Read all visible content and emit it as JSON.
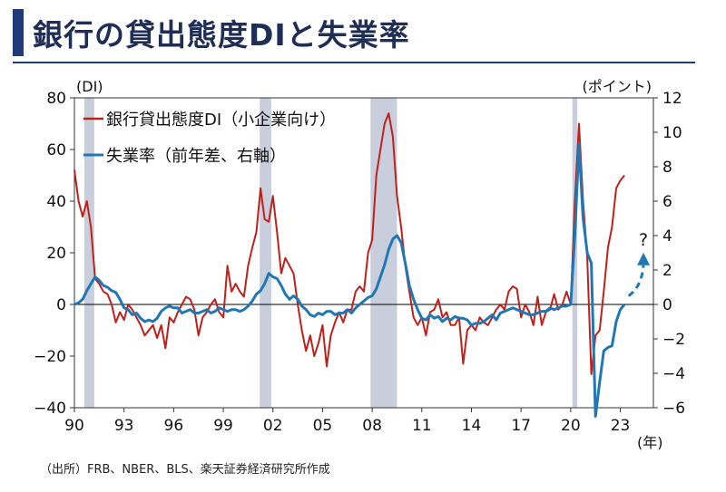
{
  "header": {
    "title": "銀行の貸出態度DIと失業率"
  },
  "footer": {
    "source": "（出所）FRB、NBER、BLS、楽天証券経済研究所作成"
  },
  "chart_data": {
    "type": "line",
    "left_axis_label": "(DI)",
    "right_axis_label": "(ポイント)",
    "x_unit_label": "(年)",
    "x_tick_labels": [
      "90",
      "93",
      "96",
      "99",
      "02",
      "05",
      "08",
      "11",
      "14",
      "17",
      "20",
      "23"
    ],
    "x_ticks_years": [
      1990,
      1993,
      1996,
      1999,
      2002,
      2005,
      2008,
      2011,
      2014,
      2017,
      2020,
      2023
    ],
    "xlim": [
      1990,
      2025
    ],
    "ylim_left": [
      -40,
      80
    ],
    "ylim_right": [
      -6,
      12
    ],
    "y_ticks_left": [
      "80",
      "60",
      "40",
      "20",
      "0",
      "−20",
      "−40"
    ],
    "y_ticks_right": [
      "12",
      "10",
      "8",
      "6",
      "4",
      "2",
      "0",
      "−2",
      "−4",
      "−6"
    ],
    "recessions": [
      [
        1990.6,
        1991.2
      ],
      [
        2001.2,
        2001.9
      ],
      [
        2007.9,
        2009.5
      ],
      [
        2020.1,
        2020.4
      ]
    ],
    "annotation": "?",
    "colors": {
      "di": "#c0201a",
      "unemployment": "#1f77b4",
      "recession": "#c9cedd"
    },
    "series": [
      {
        "name": "銀行貸出態度DI（小企業向け）",
        "axis": "left",
        "points": [
          [
            1990.0,
            52
          ],
          [
            1990.25,
            40
          ],
          [
            1990.5,
            34
          ],
          [
            1990.75,
            40
          ],
          [
            1991.0,
            30
          ],
          [
            1991.25,
            10
          ],
          [
            1991.5,
            8
          ],
          [
            1991.75,
            5
          ],
          [
            1992.0,
            4
          ],
          [
            1992.25,
            0
          ],
          [
            1992.5,
            -7
          ],
          [
            1992.75,
            -3
          ],
          [
            1993.0,
            -6
          ],
          [
            1993.25,
            0
          ],
          [
            1993.5,
            -2
          ],
          [
            1993.75,
            -5
          ],
          [
            1994.0,
            -8
          ],
          [
            1994.25,
            -12
          ],
          [
            1994.5,
            -10
          ],
          [
            1994.75,
            -8
          ],
          [
            1995.0,
            -13
          ],
          [
            1995.25,
            -8
          ],
          [
            1995.5,
            -17
          ],
          [
            1995.75,
            -5
          ],
          [
            1996.0,
            -7
          ],
          [
            1996.25,
            -3
          ],
          [
            1996.5,
            0
          ],
          [
            1996.75,
            3
          ],
          [
            1997.0,
            2
          ],
          [
            1997.25,
            -2
          ],
          [
            1997.5,
            -12
          ],
          [
            1997.75,
            -5
          ],
          [
            1998.0,
            -3
          ],
          [
            1998.25,
            0
          ],
          [
            1998.5,
            2
          ],
          [
            1998.75,
            -3
          ],
          [
            1999.0,
            -5
          ],
          [
            1999.25,
            15
          ],
          [
            1999.5,
            5
          ],
          [
            1999.75,
            8
          ],
          [
            2000.0,
            5
          ],
          [
            2000.25,
            3
          ],
          [
            2000.5,
            15
          ],
          [
            2000.75,
            22
          ],
          [
            2001.0,
            28
          ],
          [
            2001.25,
            45
          ],
          [
            2001.5,
            33
          ],
          [
            2001.75,
            32
          ],
          [
            2002.0,
            42
          ],
          [
            2002.25,
            28
          ],
          [
            2002.5,
            12
          ],
          [
            2002.75,
            18
          ],
          [
            2003.0,
            15
          ],
          [
            2003.25,
            12
          ],
          [
            2003.5,
            0
          ],
          [
            2003.75,
            -10
          ],
          [
            2004.0,
            -18
          ],
          [
            2004.25,
            -12
          ],
          [
            2004.5,
            -20
          ],
          [
            2004.75,
            -15
          ],
          [
            2005.0,
            -8
          ],
          [
            2005.25,
            -24
          ],
          [
            2005.5,
            -12
          ],
          [
            2005.75,
            -7
          ],
          [
            2006.0,
            -3
          ],
          [
            2006.25,
            -7
          ],
          [
            2006.5,
            -2
          ],
          [
            2006.75,
            -2
          ],
          [
            2007.0,
            5
          ],
          [
            2007.25,
            7
          ],
          [
            2007.5,
            5
          ],
          [
            2007.75,
            20
          ],
          [
            2008.0,
            25
          ],
          [
            2008.25,
            50
          ],
          [
            2008.5,
            60
          ],
          [
            2008.75,
            70
          ],
          [
            2009.0,
            74
          ],
          [
            2009.25,
            65
          ],
          [
            2009.5,
            42
          ],
          [
            2009.75,
            30
          ],
          [
            2010.0,
            15
          ],
          [
            2010.25,
            5
          ],
          [
            2010.5,
            -5
          ],
          [
            2010.75,
            -8
          ],
          [
            2011.0,
            -5
          ],
          [
            2011.25,
            -12
          ],
          [
            2011.5,
            -3
          ],
          [
            2011.75,
            -2
          ],
          [
            2012.0,
            2
          ],
          [
            2012.25,
            -5
          ],
          [
            2012.5,
            -3
          ],
          [
            2012.75,
            -8
          ],
          [
            2013.0,
            -8
          ],
          [
            2013.25,
            -5
          ],
          [
            2013.5,
            -23
          ],
          [
            2013.75,
            -10
          ],
          [
            2014.0,
            -8
          ],
          [
            2014.25,
            -10
          ],
          [
            2014.5,
            -5
          ],
          [
            2014.75,
            -7
          ],
          [
            2015.0,
            -8
          ],
          [
            2015.25,
            -5
          ],
          [
            2015.5,
            -2
          ],
          [
            2015.75,
            0
          ],
          [
            2016.0,
            -2
          ],
          [
            2016.25,
            5
          ],
          [
            2016.5,
            7
          ],
          [
            2016.75,
            6
          ],
          [
            2017.0,
            -5
          ],
          [
            2017.25,
            0
          ],
          [
            2017.5,
            -3
          ],
          [
            2017.75,
            -8
          ],
          [
            2018.0,
            3
          ],
          [
            2018.25,
            -8
          ],
          [
            2018.5,
            -3
          ],
          [
            2018.75,
            -2
          ],
          [
            2019.0,
            4
          ],
          [
            2019.25,
            -2
          ],
          [
            2019.5,
            0
          ],
          [
            2019.75,
            5
          ],
          [
            2020.0,
            0
          ],
          [
            2020.25,
            40
          ],
          [
            2020.5,
            70
          ],
          [
            2020.75,
            40
          ],
          [
            2021.0,
            18
          ],
          [
            2021.25,
            -27
          ],
          [
            2021.5,
            -12
          ],
          [
            2021.75,
            -10
          ],
          [
            2022.0,
            5
          ],
          [
            2022.25,
            22
          ],
          [
            2022.5,
            30
          ],
          [
            2022.75,
            45
          ],
          [
            2023.0,
            48
          ],
          [
            2023.25,
            50
          ]
        ]
      },
      {
        "name": "失業率（前年差、右軸）",
        "axis": "right",
        "points": [
          [
            1990.0,
            0
          ],
          [
            1990.25,
            0.1
          ],
          [
            1990.5,
            0.3
          ],
          [
            1990.75,
            0.8
          ],
          [
            1991.0,
            1.2
          ],
          [
            1991.25,
            1.6
          ],
          [
            1991.5,
            1.4
          ],
          [
            1991.75,
            1.1
          ],
          [
            1992.0,
            1.0
          ],
          [
            1992.25,
            0.8
          ],
          [
            1992.5,
            0.7
          ],
          [
            1992.75,
            0.3
          ],
          [
            1993.0,
            -0.2
          ],
          [
            1993.25,
            -0.3
          ],
          [
            1993.5,
            -0.6
          ],
          [
            1993.75,
            -0.5
          ],
          [
            1994.0,
            -0.8
          ],
          [
            1994.25,
            -1.0
          ],
          [
            1994.5,
            -0.9
          ],
          [
            1994.75,
            -1.0
          ],
          [
            1995.0,
            -0.8
          ],
          [
            1995.25,
            -0.4
          ],
          [
            1995.5,
            -0.2
          ],
          [
            1995.75,
            -0.1
          ],
          [
            1996.0,
            -0.2
          ],
          [
            1996.25,
            -0.2
          ],
          [
            1996.5,
            -0.5
          ],
          [
            1996.75,
            -0.4
          ],
          [
            1997.0,
            -0.3
          ],
          [
            1997.25,
            -0.5
          ],
          [
            1997.5,
            -0.5
          ],
          [
            1997.75,
            -0.4
          ],
          [
            1998.0,
            -0.3
          ],
          [
            1998.25,
            -0.5
          ],
          [
            1998.5,
            -0.4
          ],
          [
            1998.75,
            -0.2
          ],
          [
            1999.0,
            -0.3
          ],
          [
            1999.25,
            -0.4
          ],
          [
            1999.5,
            -0.3
          ],
          [
            1999.75,
            -0.3
          ],
          [
            2000.0,
            -0.4
          ],
          [
            2000.25,
            -0.3
          ],
          [
            2000.5,
            -0.1
          ],
          [
            2000.75,
            0.2
          ],
          [
            2001.0,
            0.6
          ],
          [
            2001.25,
            0.8
          ],
          [
            2001.5,
            1.2
          ],
          [
            2001.75,
            1.8
          ],
          [
            2002.0,
            1.6
          ],
          [
            2002.25,
            1.5
          ],
          [
            2002.5,
            1.1
          ],
          [
            2002.75,
            0.6
          ],
          [
            2003.0,
            0.3
          ],
          [
            2003.25,
            0.5
          ],
          [
            2003.5,
            0.3
          ],
          [
            2003.75,
            -0.1
          ],
          [
            2004.0,
            -0.3
          ],
          [
            2004.25,
            -0.6
          ],
          [
            2004.5,
            -0.7
          ],
          [
            2004.75,
            -0.5
          ],
          [
            2005.0,
            -0.6
          ],
          [
            2005.25,
            -0.4
          ],
          [
            2005.5,
            -0.4
          ],
          [
            2005.75,
            -0.6
          ],
          [
            2006.0,
            -0.5
          ],
          [
            2006.25,
            -0.5
          ],
          [
            2006.5,
            -0.3
          ],
          [
            2006.75,
            -0.5
          ],
          [
            2007.0,
            -0.2
          ],
          [
            2007.25,
            0.0
          ],
          [
            2007.5,
            0.2
          ],
          [
            2007.75,
            0.4
          ],
          [
            2008.0,
            0.5
          ],
          [
            2008.25,
            0.9
          ],
          [
            2008.5,
            1.6
          ],
          [
            2008.75,
            2.3
          ],
          [
            2009.0,
            3.2
          ],
          [
            2009.25,
            3.8
          ],
          [
            2009.5,
            4.0
          ],
          [
            2009.75,
            3.6
          ],
          [
            2010.0,
            2.4
          ],
          [
            2010.25,
            1.1
          ],
          [
            2010.5,
            0.3
          ],
          [
            2010.75,
            -0.3
          ],
          [
            2011.0,
            -0.8
          ],
          [
            2011.25,
            -0.9
          ],
          [
            2011.5,
            -0.6
          ],
          [
            2011.75,
            -0.8
          ],
          [
            2012.0,
            -0.7
          ],
          [
            2012.25,
            -1.0
          ],
          [
            2012.5,
            -0.8
          ],
          [
            2012.75,
            -0.9
          ],
          [
            2013.0,
            -0.7
          ],
          [
            2013.25,
            -0.8
          ],
          [
            2013.5,
            -0.8
          ],
          [
            2013.75,
            -0.9
          ],
          [
            2014.0,
            -1.2
          ],
          [
            2014.25,
            -1.1
          ],
          [
            2014.5,
            -1.1
          ],
          [
            2014.75,
            -1.0
          ],
          [
            2015.0,
            -0.8
          ],
          [
            2015.25,
            -0.6
          ],
          [
            2015.5,
            -0.9
          ],
          [
            2015.75,
            -0.5
          ],
          [
            2016.0,
            -0.4
          ],
          [
            2016.25,
            -0.3
          ],
          [
            2016.5,
            -0.2
          ],
          [
            2016.75,
            -0.3
          ],
          [
            2017.0,
            -0.4
          ],
          [
            2017.25,
            -0.5
          ],
          [
            2017.5,
            -0.6
          ],
          [
            2017.75,
            -0.6
          ],
          [
            2018.0,
            -0.5
          ],
          [
            2018.25,
            -0.4
          ],
          [
            2018.5,
            -0.4
          ],
          [
            2018.75,
            -0.2
          ],
          [
            2019.0,
            -0.3
          ],
          [
            2019.25,
            -0.2
          ],
          [
            2019.5,
            -0.1
          ],
          [
            2019.75,
            -0.1
          ],
          [
            2020.0,
            0.0
          ],
          [
            2020.25,
            4.0
          ],
          [
            2020.5,
            9.3
          ],
          [
            2020.75,
            5.0
          ],
          [
            2021.0,
            3.0
          ],
          [
            2021.25,
            2.4
          ],
          [
            2021.5,
            -6.5
          ],
          [
            2021.75,
            -4.5
          ],
          [
            2022.0,
            -2.7
          ],
          [
            2022.25,
            -2.5
          ],
          [
            2022.5,
            -2.4
          ],
          [
            2022.75,
            -1.0
          ],
          [
            2023.0,
            -0.3
          ],
          [
            2023.25,
            0.0
          ]
        ]
      }
    ],
    "forecast_arrow": [
      [
        2023.5,
        0.5
      ],
      [
        2024.4,
        2.8
      ]
    ]
  }
}
